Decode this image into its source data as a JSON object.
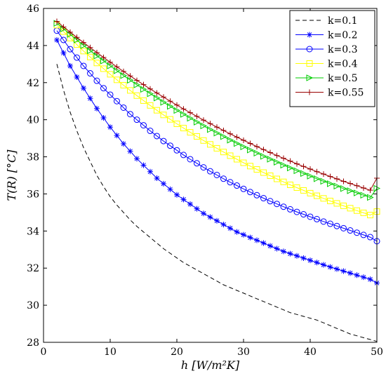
{
  "chart_data": {
    "type": "line",
    "xlabel": "h  [W/m²K]",
    "ylabel": "T(R) [°C]",
    "xlim": [
      0,
      50
    ],
    "ylim": [
      28,
      46
    ],
    "xticks": [
      0,
      10,
      20,
      30,
      40,
      50
    ],
    "yticks": [
      28,
      30,
      32,
      34,
      36,
      38,
      40,
      42,
      44,
      46
    ],
    "grid": false,
    "legend_position": "top-right",
    "x_start": 2,
    "x_step": 1,
    "x_end": 50,
    "series": [
      {
        "name": "k=0.1",
        "color": "#000000",
        "marker": "none",
        "dash": true,
        "values": [
          43.0,
          41.6,
          40.4,
          39.4,
          38.5,
          37.75,
          37.0,
          36.4,
          35.85,
          35.4,
          35.0,
          34.6,
          34.25,
          33.95,
          33.65,
          33.35,
          33.05,
          32.8,
          32.55,
          32.3,
          32.1,
          31.9,
          31.7,
          31.5,
          31.3,
          31.1,
          30.95,
          30.8,
          30.65,
          30.5,
          30.35,
          30.2,
          30.05,
          29.9,
          29.75,
          29.6,
          29.5,
          29.4,
          29.3,
          29.2,
          29.05,
          28.9,
          28.75,
          28.6,
          28.45,
          28.35,
          28.25,
          28.15,
          28.05
        ]
      },
      {
        "name": "k=0.2",
        "color": "#0000ff",
        "marker": "star",
        "dash": false,
        "values": [
          44.3,
          43.6,
          42.9,
          42.3,
          41.7,
          41.15,
          40.6,
          40.1,
          39.6,
          39.15,
          38.7,
          38.3,
          37.9,
          37.55,
          37.2,
          36.85,
          36.55,
          36.25,
          35.95,
          35.7,
          35.45,
          35.2,
          34.95,
          34.75,
          34.55,
          34.35,
          34.15,
          33.95,
          33.8,
          33.65,
          33.5,
          33.35,
          33.2,
          33.05,
          32.9,
          32.78,
          32.66,
          32.54,
          32.42,
          32.3,
          32.18,
          32.06,
          31.95,
          31.84,
          31.73,
          31.62,
          31.51,
          31.4,
          31.2
        ]
      },
      {
        "name": "k=0.3",
        "color": "#0000ff",
        "marker": "circle",
        "dash": false,
        "values": [
          44.8,
          44.3,
          43.8,
          43.35,
          42.9,
          42.5,
          42.1,
          41.7,
          41.35,
          41.0,
          40.65,
          40.3,
          40.0,
          39.7,
          39.4,
          39.12,
          38.85,
          38.6,
          38.35,
          38.1,
          37.87,
          37.65,
          37.43,
          37.22,
          37.02,
          36.82,
          36.63,
          36.45,
          36.27,
          36.1,
          35.93,
          35.77,
          35.61,
          35.46,
          35.31,
          35.17,
          35.03,
          34.9,
          34.77,
          34.64,
          34.51,
          34.39,
          34.27,
          34.15,
          34.03,
          33.91,
          33.79,
          33.67,
          33.45
        ]
      },
      {
        "name": "k=0.4",
        "color": "#ffff00",
        "marker": "square",
        "dash": false,
        "values": [
          45.1,
          44.75,
          44.4,
          44.05,
          43.7,
          43.38,
          43.06,
          42.75,
          42.45,
          42.15,
          41.86,
          41.58,
          41.3,
          41.03,
          40.77,
          40.51,
          40.26,
          40.02,
          39.78,
          39.55,
          39.32,
          39.1,
          38.88,
          38.67,
          38.46,
          38.26,
          38.06,
          37.87,
          37.68,
          37.5,
          37.32,
          37.15,
          36.98,
          36.81,
          36.65,
          36.49,
          36.34,
          36.19,
          36.04,
          35.9,
          35.76,
          35.62,
          35.49,
          35.36,
          35.23,
          35.1,
          34.98,
          34.86,
          35.05
        ]
      },
      {
        "name": "k=0.5",
        "color": "#00cc00",
        "marker": "triangle",
        "dash": false,
        "values": [
          45.2,
          44.9,
          44.6,
          44.3,
          44.0,
          43.72,
          43.44,
          43.17,
          42.9,
          42.64,
          42.38,
          42.13,
          41.88,
          41.64,
          41.4,
          41.17,
          40.94,
          40.72,
          40.5,
          40.29,
          40.08,
          39.87,
          39.67,
          39.47,
          39.28,
          39.09,
          38.9,
          38.72,
          38.54,
          38.37,
          38.2,
          38.03,
          37.87,
          37.71,
          37.55,
          37.4,
          37.25,
          37.1,
          36.96,
          36.82,
          36.68,
          36.55,
          36.42,
          36.29,
          36.17,
          36.05,
          35.93,
          35.81,
          36.3
        ]
      },
      {
        "name": "k=0.55",
        "color": "#990000",
        "marker": "plus",
        "dash": false,
        "values": [
          45.3,
          45.0,
          44.72,
          44.44,
          44.16,
          43.89,
          43.62,
          43.36,
          43.1,
          42.85,
          42.6,
          42.36,
          42.12,
          41.89,
          41.66,
          41.44,
          41.22,
          41.0,
          40.79,
          40.58,
          40.38,
          40.18,
          39.98,
          39.79,
          39.6,
          39.42,
          39.24,
          39.06,
          38.89,
          38.72,
          38.55,
          38.39,
          38.23,
          38.07,
          37.92,
          37.77,
          37.62,
          37.48,
          37.34,
          37.2,
          37.07,
          36.94,
          36.81,
          36.68,
          36.56,
          36.44,
          36.32,
          36.2,
          36.85
        ]
      }
    ]
  }
}
